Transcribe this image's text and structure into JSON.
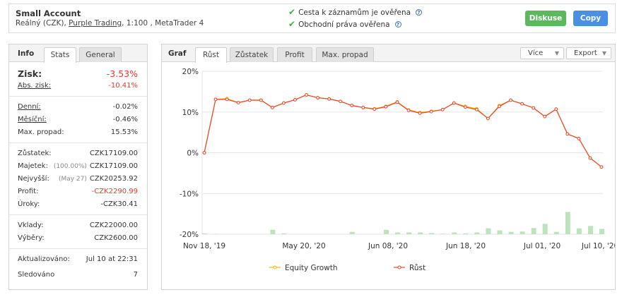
{
  "header": {
    "account_name": "Small Account",
    "account_type": "Reálný (CZK),",
    "broker": "Purple Trading",
    "details": ", 1:100 , MetaTrader 4",
    "verified_history": "Cesta k záznamům je ověřena",
    "verified_rights": "Obchodní práva ověřena",
    "discuss_label": "Diskuse",
    "copy_label": "Copy"
  },
  "stats_panel": {
    "title": "Info",
    "tabs": [
      "Stats",
      "General"
    ],
    "gain": {
      "label": "Zisk:",
      "value": "-3.53%"
    },
    "abs_gain": {
      "label": "Abs. zisk:",
      "value": "-10.41%"
    },
    "daily": {
      "label": "Denní:",
      "value": "-0.02%"
    },
    "monthly": {
      "label": "Měsíční:",
      "value": "-0.46%"
    },
    "max_drawdown": {
      "label": "Max. propad:",
      "value": "15.53%"
    },
    "balance": {
      "label": "Zůstatek:",
      "value": "CZK17109.00"
    },
    "equity": {
      "label": "Majetek:",
      "pct": "(100.00%)",
      "value": "CZK17109.00"
    },
    "highest": {
      "label": "Nejvyšší:",
      "date": "(May 27)",
      "value": "CZK20253.92"
    },
    "profit": {
      "label": "Profit:",
      "value": "-CZK2290.99"
    },
    "interest": {
      "label": "Úroky:",
      "value": "-CZK30.41"
    },
    "deposits": {
      "label": "Vklady:",
      "value": "CZK22000.00"
    },
    "withdrawals": {
      "label": "Výběry:",
      "value": "CZK2600.00"
    },
    "updated": {
      "label": "Aktualizováno:",
      "value": "Jul 10 at 22:31"
    },
    "tracking": {
      "label": "Sledováno",
      "value": "7"
    }
  },
  "chart_panel": {
    "title": "Graf",
    "tabs": [
      "Růst",
      "Zůstatek",
      "Profit",
      "Max. propad"
    ],
    "more_label": "Více",
    "export_label": "Export"
  },
  "colors": {
    "growth": "#e8432e",
    "equity": "#f5b800",
    "volume": "#bde3bd",
    "red_text": "#e03b2e",
    "green_button": "#5cb85c",
    "blue_button": "#4a90e2"
  },
  "chart_data": {
    "type": "line",
    "x_ticks": [
      "Nov 18, '19",
      "May 20, '20",
      "Jun 08, '20",
      "Jun 18, '20",
      "Jul 01, '20",
      "Jul 10, '20"
    ],
    "y_ticks": [
      "20%",
      "10%",
      "0%",
      "-10%",
      "-20%"
    ],
    "ylim": [
      -20,
      20
    ],
    "series": [
      {
        "name": "Equity Growth",
        "values": [
          0,
          13.1,
          13.3,
          12.3,
          12.9,
          12.9,
          11.1,
          12.2,
          13.0,
          14.2,
          13.5,
          13.2,
          12.6,
          11.6,
          11.1,
          10.8,
          11.4,
          12.5,
          10.5,
          9.9,
          10.2,
          10.6,
          12.2,
          11.4,
          10.8,
          8.4,
          11.6,
          12.9,
          12.0,
          11.0,
          8.9,
          10.7,
          4.6,
          3.5,
          -1.3,
          -3.5
        ]
      },
      {
        "name": "Růst",
        "values": [
          0,
          13.1,
          13.1,
          12.3,
          12.9,
          12.9,
          11.1,
          12.2,
          13.0,
          14.2,
          13.5,
          13.2,
          12.6,
          11.6,
          11.1,
          10.7,
          11.3,
          12.4,
          10.4,
          9.7,
          10.1,
          10.6,
          12.2,
          11.2,
          10.6,
          8.4,
          11.4,
          12.9,
          12.0,
          11.0,
          8.9,
          10.7,
          4.6,
          3.5,
          -1.3,
          -3.5
        ]
      }
    ],
    "volume": [
      0.3,
      0.1,
      0,
      0,
      0,
      0,
      1.5,
      0.3,
      0,
      0,
      0,
      0,
      0,
      0.8,
      0,
      0,
      1.5,
      0.6,
      0.6,
      0.6,
      0.4,
      0.2,
      0.6,
      0.3,
      0.6,
      2.0,
      1.3,
      0.8,
      0.9,
      2.1,
      3.5,
      0.8,
      7.5,
      2.0,
      2.8,
      1.8
    ]
  }
}
